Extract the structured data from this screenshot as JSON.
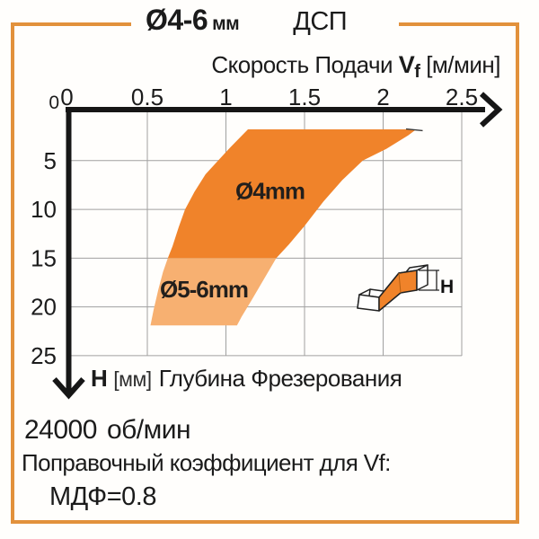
{
  "frame": {
    "border_color": "#E2913C"
  },
  "title": {
    "diameter": "Ø4-6",
    "unit": "мм",
    "material": "ДСП"
  },
  "x_axis_title": {
    "prefix": "Скорость Подачи ",
    "v": "V",
    "f_sub": "f",
    "units": " [м/мин]"
  },
  "h_axis_title": {
    "symbol": "H",
    "units": "[мм]",
    "text": "Глубина Фрезерования"
  },
  "footer": {
    "rpm_value": "24000",
    "rpm_units": "об/мин",
    "correction_line": "Поправочный коэффициент для Vf:",
    "mdf_line": "МДФ=0.8"
  },
  "chart_data": {
    "type": "area",
    "title": "Ø4-6 мм ДСП",
    "xlabel": "Скорость Подачи Vf [м/мин]",
    "ylabel": "H [мм] Глубина Фрезерования",
    "xlim": [
      0,
      2.5
    ],
    "ylim": [
      0,
      25
    ],
    "y_inverted": true,
    "grid": true,
    "x_tick_values": [
      0,
      0.5,
      1,
      1.5,
      2,
      2.5
    ],
    "x_tick_labels": [
      "0",
      "0.5",
      "1",
      "1.5",
      "2",
      "2.5"
    ],
    "y_tick_values": [
      5,
      10,
      15,
      20,
      25
    ],
    "y_tick_labels": [
      "5",
      "10",
      "15",
      "20",
      "25"
    ],
    "y_axis_zero_label": "0",
    "grid_color": "#a0a0a0",
    "axis_color": "#161616",
    "icon_label": "H",
    "icon_fill": "#F0832A",
    "series": [
      {
        "name": "Ø4mm",
        "fill": "#F0832A",
        "label": "Ø4mm",
        "label_pos": {
          "x": 1.28,
          "y": 8.1
        },
        "points": [
          [
            1.14,
            1.8
          ],
          [
            2.21,
            1.8
          ],
          [
            2.16,
            2.4
          ],
          [
            2.02,
            3.8
          ],
          [
            1.87,
            5.0
          ],
          [
            1.74,
            7.0
          ],
          [
            1.62,
            9.2
          ],
          [
            1.5,
            11.7
          ],
          [
            1.4,
            13.6
          ],
          [
            1.32,
            15.0
          ],
          [
            0.63,
            15.0
          ],
          [
            0.66,
            13.8
          ],
          [
            0.7,
            11.8
          ],
          [
            0.74,
            10.0
          ],
          [
            0.8,
            8.2
          ],
          [
            0.87,
            6.4
          ],
          [
            0.95,
            5.0
          ],
          [
            1.03,
            3.6
          ]
        ]
      },
      {
        "name": "Ø5-6mm",
        "fill": "#F7B071",
        "label": "Ø5-6mm",
        "label_pos": {
          "x": 0.86,
          "y": 18.2
        },
        "points": [
          [
            0.63,
            15.0
          ],
          [
            1.32,
            15.0
          ],
          [
            1.24,
            17.2
          ],
          [
            1.16,
            19.4
          ],
          [
            1.1,
            21.0
          ],
          [
            1.07,
            21.9
          ],
          [
            0.52,
            21.9
          ],
          [
            0.54,
            20.3
          ],
          [
            0.57,
            18.2
          ],
          [
            0.6,
            16.4
          ]
        ]
      }
    ]
  }
}
